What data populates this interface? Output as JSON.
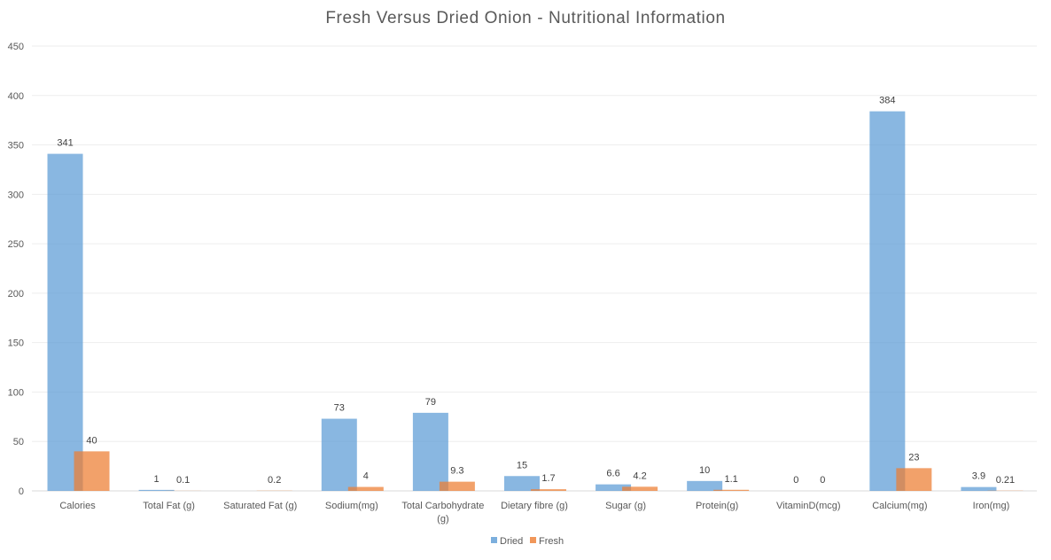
{
  "chart_data": {
    "type": "bar",
    "title": "Fresh Versus Dried Onion - Nutritional Information",
    "xlabel": "",
    "ylabel": "",
    "ylim": [
      0,
      450
    ],
    "yticks": [
      0,
      50,
      100,
      150,
      200,
      250,
      300,
      350,
      400,
      450
    ],
    "grid": true,
    "legend_position": "bottom",
    "categories": [
      "Calories",
      "Total Fat (g)",
      "Saturated Fat (g)",
      "Sodium(mg)",
      "Total Carbohydrate (g)",
      "Dietary fibre (g)",
      "Sugar (g)",
      "Protein(g)",
      "VitaminD(mcg)",
      "Calcium(mg)",
      "Iron(mg)"
    ],
    "series": [
      {
        "name": "Dried",
        "color": "#5b9bd5",
        "values": [
          341,
          1,
          null,
          73,
          79,
          15,
          6.6,
          10,
          0,
          384,
          3.9
        ],
        "labels": [
          "341",
          "1",
          "",
          "73",
          "79",
          "15",
          "6.6",
          "10",
          "0",
          "384",
          "3.9"
        ]
      },
      {
        "name": "Fresh",
        "color": "#ed7d31",
        "values": [
          40,
          0.1,
          0.2,
          4,
          9.3,
          1.7,
          4.2,
          1.1,
          0,
          23,
          0.21
        ],
        "labels": [
          "40",
          "0.1",
          "0.2",
          "4",
          "9.3",
          "1.7",
          "4.2",
          "1.1",
          "0",
          "23",
          "0.21"
        ]
      }
    ]
  }
}
